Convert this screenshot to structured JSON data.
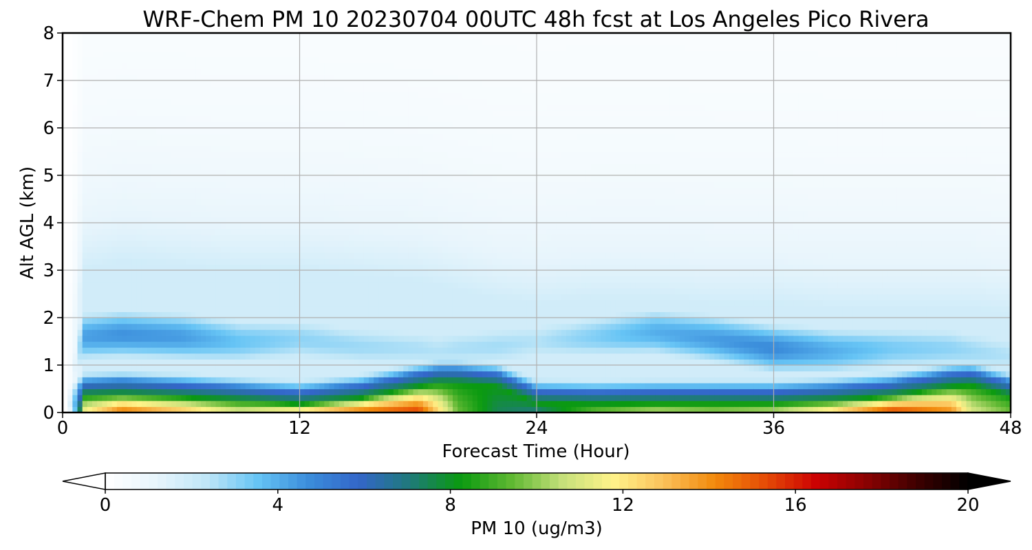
{
  "chart_data": {
    "type": "heatmap",
    "title": "WRF-Chem PM 10  20230704 00UTC 48h fcst at Los Angeles Pico Rivera",
    "xlabel": "Forecast Time (Hour)",
    "ylabel": "Alt AGL (km)",
    "xlim": [
      0,
      48
    ],
    "ylim": [
      0,
      8
    ],
    "x_ticks": [
      "0",
      "12",
      "24",
      "36",
      "48"
    ],
    "y_ticks": [
      "0",
      "1",
      "2",
      "3",
      "4",
      "5",
      "6",
      "7",
      "8"
    ],
    "grid": true,
    "colorbar": {
      "label": "PM 10  (ug/m3)",
      "orientation": "horizontal",
      "range": [
        0,
        20
      ],
      "ticks": [
        "0",
        "4",
        "8",
        "12",
        "16",
        "20"
      ],
      "extend": "both",
      "colors": [
        "#ffffff",
        "#e8f5fc",
        "#bfe6f7",
        "#66c4f5",
        "#3b8ddb",
        "#3366c9",
        "#1f7a7a",
        "#0a9a10",
        "#5fb832",
        "#c5e07a",
        "#fff38a",
        "#fbc15a",
        "#f28a0c",
        "#e64c06",
        "#cc0202",
        "#8a0202",
        "#3d0000",
        "#000000"
      ]
    },
    "profile_hours": [
      0,
      1,
      3,
      6,
      9,
      12,
      15,
      18,
      19,
      20,
      22,
      24,
      27,
      30,
      33,
      36,
      39,
      42,
      45,
      46,
      48
    ],
    "profiles": {
      "surface_max": [
        0,
        11.5,
        14.5,
        13.0,
        11.0,
        12.5,
        14.5,
        15.5,
        12.5,
        9.5,
        7.5,
        7.0,
        9.5,
        10.5,
        10.0,
        10.5,
        12.5,
        15.5,
        14.0,
        11.0,
        9.5
      ],
      "surface_top_km": [
        0,
        0.35,
        0.38,
        0.33,
        0.25,
        0.18,
        0.3,
        0.55,
        0.62,
        0.62,
        0.55,
        0.2,
        0.18,
        0.2,
        0.2,
        0.2,
        0.25,
        0.35,
        0.55,
        0.58,
        0.35
      ],
      "aloft_center_km": [
        0,
        1.6,
        1.65,
        1.6,
        1.5,
        1.55,
        1.4,
        1.35,
        1.3,
        1.35,
        1.4,
        1.5,
        1.6,
        1.7,
        1.55,
        1.35,
        1.3,
        1.35,
        1.35,
        1.3,
        1.2
      ],
      "aloft_max": [
        0,
        4.3,
        4.6,
        4.4,
        3.5,
        3.0,
        2.8,
        2.6,
        2.5,
        2.6,
        2.7,
        2.5,
        3.2,
        4.0,
        4.4,
        4.8,
        4.0,
        3.3,
        3.0,
        2.8,
        2.5
      ],
      "background_top_km": [
        0,
        3.0,
        3.2,
        3.1,
        3.0,
        3.0,
        2.9,
        2.8,
        2.7,
        2.6,
        2.4,
        2.3,
        2.4,
        2.4,
        2.3,
        2.3,
        2.2,
        2.2,
        2.2,
        2.2,
        2.1
      ]
    }
  }
}
